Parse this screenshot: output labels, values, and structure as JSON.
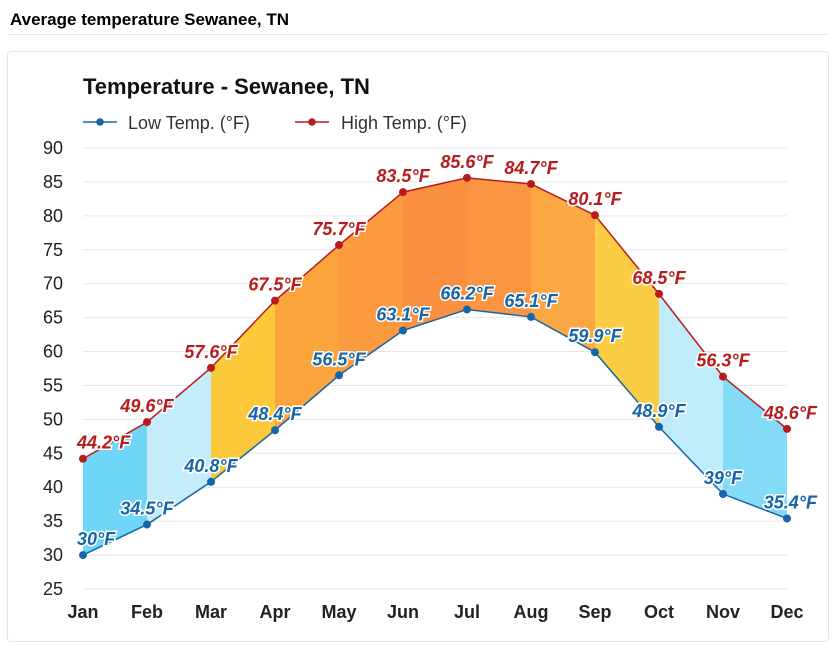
{
  "page": {
    "heading": "Average temperature Sewanee, TN"
  },
  "chart_data": {
    "type": "line",
    "title": "Temperature - Sewanee, TN",
    "categories": [
      "Jan",
      "Feb",
      "Mar",
      "Apr",
      "May",
      "Jun",
      "Jul",
      "Aug",
      "Sep",
      "Oct",
      "Nov",
      "Dec"
    ],
    "series": [
      {
        "name": "Low Temp. (°F)",
        "color": "#1565a8",
        "label_color": "#1565a8",
        "values": [
          30,
          34.5,
          40.8,
          48.4,
          56.5,
          63.1,
          66.2,
          65.1,
          59.9,
          48.9,
          39,
          35.4
        ]
      },
      {
        "name": "High Temp. (°F)",
        "color": "#b71c1c",
        "label_color": "#b71c1c",
        "values": [
          44.2,
          49.6,
          57.6,
          67.5,
          75.7,
          83.5,
          85.6,
          84.7,
          80.1,
          68.5,
          56.3,
          48.6
        ]
      }
    ],
    "data_labels": {
      "low": [
        "30°F",
        "34.5°F",
        "40.8°F",
        "48.4°F",
        "56.5°F",
        "63.1°F",
        "66.2°F",
        "65.1°F",
        "59.9°F",
        "48.9°F",
        "39°F",
        "35.4°F"
      ],
      "high": [
        "44.2°F",
        "49.6°F",
        "57.6°F",
        "67.5°F",
        "75.7°F",
        "83.5°F",
        "85.6°F",
        "84.7°F",
        "80.1°F",
        "68.5°F",
        "56.3°F",
        "48.6°F"
      ]
    },
    "band_colors": [
      "#70d6f7",
      "#c4ecfb",
      "#fbc93a",
      "#fba43c",
      "#fb9a3f",
      "#fb9040",
      "#fb9541",
      "#fba842",
      "#fbcd45",
      "#bfebfa",
      "#83dbf8",
      "#6dd6f8"
    ],
    "ylim": [
      25,
      90
    ],
    "yticks": [
      25,
      30,
      35,
      40,
      45,
      50,
      55,
      60,
      65,
      70,
      75,
      80,
      85,
      90
    ],
    "xlabel": "",
    "ylabel": "",
    "grid": true,
    "legend_position": "top-left"
  }
}
